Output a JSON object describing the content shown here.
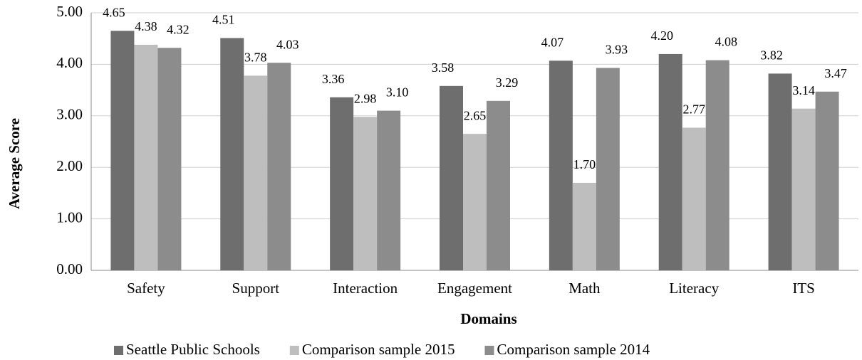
{
  "chart_data": {
    "type": "bar",
    "x_label": "Domains",
    "y_label": "Average Score",
    "categories": [
      "Safety",
      "Support",
      "Interaction",
      "Engagement",
      "Math",
      "Literacy",
      "ITS"
    ],
    "series": [
      {
        "name": "Seattle Public Schools",
        "color": "#6e6e6e",
        "values": [
          4.65,
          4.51,
          3.36,
          3.58,
          4.07,
          4.2,
          3.82
        ],
        "value_labels": [
          "4.65",
          "4.51",
          "3.36",
          "3.58",
          "4.07",
          "4.20",
          "3.82"
        ]
      },
      {
        "name": "Comparison sample 2015",
        "color": "#bebebe",
        "values": [
          4.38,
          3.78,
          2.98,
          2.65,
          1.7,
          2.77,
          3.14
        ],
        "value_labels": [
          "4.38",
          "3.78",
          "2.98",
          "2.65",
          "1.70",
          "2.77",
          "3.14"
        ]
      },
      {
        "name": "Comparison sample 2014",
        "color": "#8c8c8c",
        "values": [
          4.32,
          4.03,
          3.1,
          3.29,
          3.93,
          4.08,
          3.47
        ],
        "value_labels": [
          "4.32",
          "4.03",
          "3.10",
          "3.29",
          "3.93",
          "4.08",
          "3.47"
        ]
      }
    ],
    "ylim": [
      0,
      5
    ],
    "yticks": [
      {
        "value": 0,
        "label": "0.00"
      },
      {
        "value": 1,
        "label": "1.00"
      },
      {
        "value": 2,
        "label": "2.00"
      },
      {
        "value": 3,
        "label": "3.00"
      },
      {
        "value": 4,
        "label": "4.00"
      },
      {
        "value": 5,
        "label": "5.00"
      }
    ],
    "grid": true,
    "legend": "bottom"
  }
}
